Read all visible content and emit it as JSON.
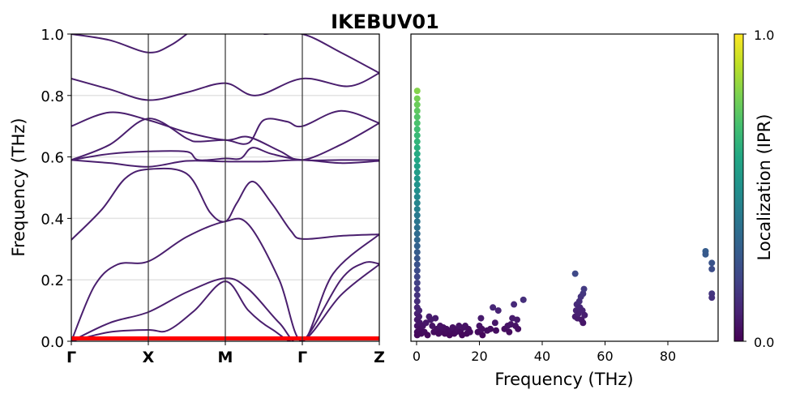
{
  "chart_data": [
    {
      "type": "line",
      "title": "IKEBUV01",
      "ylabel": "Frequency (THz)",
      "xlabel": "",
      "ylim": [
        0,
        1.0
      ],
      "yticks": [
        "0.0",
        "0.2",
        "0.4",
        "0.6",
        "0.8",
        "1.0"
      ],
      "ytick_values": [
        0,
        0.2,
        0.4,
        0.6,
        0.8,
        1.0
      ],
      "high_symmetry_points": [
        "Γ",
        "X",
        "M",
        "Γ",
        "Z"
      ],
      "grid": "horizontal",
      "highlight_band": {
        "y": 0.008,
        "color": "#ff0000"
      },
      "band_color": "#4a1f6e",
      "bands": [
        [
          [
            0,
            0
          ],
          [
            0.5,
            0.03
          ],
          [
            1,
            0.037
          ],
          [
            1.25,
            0.035
          ],
          [
            1.6,
            0.1
          ],
          [
            2,
            0.195
          ],
          [
            2.3,
            0.1
          ],
          [
            2.6,
            0.04
          ],
          [
            3,
            0
          ],
          [
            3.5,
            0.15
          ],
          [
            4,
            0.25
          ]
        ],
        [
          [
            0,
            0
          ],
          [
            0.5,
            0.06
          ],
          [
            1,
            0.095
          ],
          [
            1.5,
            0.16
          ],
          [
            2,
            0.205
          ],
          [
            2.3,
            0.17
          ],
          [
            2.7,
            0.06
          ],
          [
            3,
            0
          ],
          [
            3.5,
            0.2
          ],
          [
            3.8,
            0.255
          ],
          [
            4,
            0.252
          ]
        ],
        [
          [
            0,
            0
          ],
          [
            0.3,
            0.18
          ],
          [
            0.6,
            0.25
          ],
          [
            1,
            0.26
          ],
          [
            1.5,
            0.34
          ],
          [
            2,
            0.39
          ],
          [
            2.3,
            0.38
          ],
          [
            2.7,
            0.2
          ],
          [
            3,
            0
          ],
          [
            3.4,
            0.22
          ],
          [
            4,
            0.348
          ]
        ],
        [
          [
            0,
            0.33
          ],
          [
            0.4,
            0.43
          ],
          [
            0.7,
            0.53
          ],
          [
            1,
            0.56
          ],
          [
            1.5,
            0.545
          ],
          [
            1.8,
            0.42
          ],
          [
            2,
            0.39
          ],
          [
            2.15,
            0.45
          ],
          [
            2.35,
            0.52
          ],
          [
            2.6,
            0.45
          ],
          [
            2.85,
            0.36
          ],
          [
            3,
            0.333
          ],
          [
            3.5,
            0.343
          ],
          [
            4,
            0.348
          ]
        ],
        [
          [
            0,
            0.59
          ],
          [
            0.5,
            0.58
          ],
          [
            1,
            0.568
          ],
          [
            1.5,
            0.587
          ],
          [
            2,
            0.585
          ],
          [
            2.5,
            0.585
          ],
          [
            3,
            0.59
          ],
          [
            3.5,
            0.58
          ],
          [
            4,
            0.587
          ]
        ],
        [
          [
            0,
            0.59
          ],
          [
            0.5,
            0.61
          ],
          [
            1,
            0.618
          ],
          [
            1.5,
            0.617
          ],
          [
            1.65,
            0.59
          ],
          [
            2,
            0.595
          ],
          [
            2.2,
            0.595
          ],
          [
            2.35,
            0.63
          ],
          [
            2.6,
            0.61
          ],
          [
            3,
            0.59
          ],
          [
            3.5,
            0.59
          ],
          [
            4,
            0.59
          ]
        ],
        [
          [
            0,
            0.59
          ],
          [
            0.5,
            0.64
          ],
          [
            1,
            0.725
          ],
          [
            1.5,
            0.66
          ],
          [
            1.65,
            0.65
          ],
          [
            2,
            0.655
          ],
          [
            2.3,
            0.645
          ],
          [
            2.5,
            0.72
          ],
          [
            2.8,
            0.715
          ],
          [
            3,
            0.7
          ],
          [
            3.5,
            0.75
          ],
          [
            4,
            0.71
          ]
        ],
        [
          [
            0,
            0.7
          ],
          [
            0.5,
            0.745
          ],
          [
            1,
            0.72
          ],
          [
            1.5,
            0.68
          ],
          [
            2,
            0.655
          ],
          [
            2.3,
            0.665
          ],
          [
            2.7,
            0.62
          ],
          [
            3,
            0.59
          ],
          [
            3.5,
            0.64
          ],
          [
            4,
            0.71
          ]
        ],
        [
          [
            0,
            0.855
          ],
          [
            0.5,
            0.82
          ],
          [
            1,
            0.785
          ],
          [
            1.5,
            0.81
          ],
          [
            2,
            0.84
          ],
          [
            2.4,
            0.8
          ],
          [
            3,
            0.855
          ],
          [
            3.6,
            0.83
          ],
          [
            4,
            0.873
          ]
        ],
        [
          [
            0,
            1.0
          ],
          [
            0.5,
            0.98
          ],
          [
            1,
            0.94
          ],
          [
            1.3,
            0.965
          ],
          [
            1.6,
            1.02
          ]
        ],
        [
          [
            2.5,
            1.0
          ],
          [
            3,
            1.0
          ],
          [
            3.5,
            0.94
          ],
          [
            4,
            0.873
          ]
        ]
      ]
    },
    {
      "type": "scatter",
      "xlabel": "Frequency (THz)",
      "ylabel": "",
      "xlim": [
        -1.8,
        96
      ],
      "ylim": [
        0,
        1.0
      ],
      "xticks": [
        "0",
        "20",
        "40",
        "60",
        "80"
      ],
      "xtick_values": [
        0,
        20,
        40,
        60,
        80
      ],
      "colormap": "viridis",
      "colorbar": {
        "label": "Localization (IPR)",
        "ticks": [
          "0.0",
          "1.0"
        ],
        "range": [
          0,
          1.0
        ]
      },
      "points": [
        [
          0.2,
          0.815
        ],
        [
          0.2,
          0.79
        ],
        [
          0.2,
          0.77
        ],
        [
          0.2,
          0.75
        ],
        [
          0.2,
          0.73
        ],
        [
          0.2,
          0.71
        ],
        [
          0.2,
          0.69
        ],
        [
          0.2,
          0.67
        ],
        [
          0.2,
          0.65
        ],
        [
          0.2,
          0.63
        ],
        [
          0.2,
          0.61
        ],
        [
          0.2,
          0.59
        ],
        [
          0.2,
          0.57
        ],
        [
          0.2,
          0.55
        ],
        [
          0.2,
          0.53
        ],
        [
          0.2,
          0.51
        ],
        [
          0.2,
          0.49
        ],
        [
          0.2,
          0.47
        ],
        [
          0.2,
          0.45
        ],
        [
          0.2,
          0.43
        ],
        [
          0.2,
          0.41
        ],
        [
          0.2,
          0.39
        ],
        [
          0.2,
          0.37
        ],
        [
          0.2,
          0.35
        ],
        [
          0.2,
          0.33
        ],
        [
          0.2,
          0.31
        ],
        [
          0.2,
          0.29
        ],
        [
          0.2,
          0.27
        ],
        [
          0.2,
          0.25
        ],
        [
          0.2,
          0.23
        ],
        [
          0.2,
          0.21
        ],
        [
          0.2,
          0.19
        ],
        [
          0.2,
          0.17
        ],
        [
          0.2,
          0.15
        ],
        [
          0.2,
          0.13
        ],
        [
          0.2,
          0.11
        ],
        [
          0.2,
          0.09
        ],
        [
          0.2,
          0.07
        ],
        [
          0.2,
          0.05
        ],
        [
          0.2,
          0.03
        ],
        [
          0.2,
          0.02
        ],
        [
          0.8,
          0.1
        ],
        [
          0.8,
          0.08
        ],
        [
          1,
          0.06
        ],
        [
          1.2,
          0.04
        ],
        [
          1.5,
          0.025
        ],
        [
          2,
          0.05
        ],
        [
          2.5,
          0.03
        ],
        [
          3,
          0.06
        ],
        [
          3.5,
          0.02
        ],
        [
          4,
          0.08
        ],
        [
          4.5,
          0.07
        ],
        [
          5,
          0.05
        ],
        [
          5.5,
          0.03
        ],
        [
          6,
          0.075
        ],
        [
          6.5,
          0.04
        ],
        [
          7,
          0.025
        ],
        [
          7.5,
          0.05
        ],
        [
          8,
          0.03
        ],
        [
          8.5,
          0.045
        ],
        [
          9,
          0.025
        ],
        [
          9.5,
          0.04
        ],
        [
          10,
          0.03
        ],
        [
          10.5,
          0.02
        ],
        [
          11,
          0.035
        ],
        [
          11.5,
          0.045
        ],
        [
          12,
          0.025
        ],
        [
          12.5,
          0.03
        ],
        [
          13,
          0.04
        ],
        [
          13.5,
          0.05
        ],
        [
          14,
          0.03
        ],
        [
          14.5,
          0.02
        ],
        [
          15,
          0.045
        ],
        [
          15.5,
          0.05
        ],
        [
          16,
          0.025
        ],
        [
          16.5,
          0.04
        ],
        [
          17,
          0.03
        ],
        [
          19.5,
          0.03
        ],
        [
          20,
          0.05
        ],
        [
          20.5,
          0.075
        ],
        [
          20.8,
          0.04
        ],
        [
          21,
          0.02
        ],
        [
          22.5,
          0.035
        ],
        [
          23.5,
          0.04
        ],
        [
          24.3,
          0.11
        ],
        [
          25,
          0.06
        ],
        [
          25.3,
          0.035
        ],
        [
          26,
          0.1
        ],
        [
          28,
          0.04
        ],
        [
          29,
          0.05
        ],
        [
          29.5,
          0.03
        ],
        [
          30,
          0.055
        ],
        [
          30.5,
          0.075
        ],
        [
          31,
          0.12
        ],
        [
          31.5,
          0.05
        ],
        [
          32,
          0.07
        ],
        [
          32.3,
          0.04
        ],
        [
          34,
          0.135
        ],
        [
          50.5,
          0.22
        ],
        [
          50.5,
          0.08
        ],
        [
          50.8,
          0.1
        ],
        [
          51,
          0.12
        ],
        [
          51.2,
          0.075
        ],
        [
          51.5,
          0.09
        ],
        [
          51.8,
          0.13
        ],
        [
          52,
          0.11
        ],
        [
          52.3,
          0.145
        ],
        [
          52.5,
          0.07
        ],
        [
          52.8,
          0.1
        ],
        [
          53,
          0.155
        ],
        [
          53,
          0.06
        ],
        [
          53.3,
          0.17
        ],
        [
          53.5,
          0.085
        ],
        [
          92,
          0.293
        ],
        [
          92,
          0.283
        ],
        [
          94,
          0.255
        ],
        [
          94,
          0.235
        ],
        [
          94,
          0.155
        ],
        [
          94,
          0.142
        ]
      ]
    }
  ]
}
